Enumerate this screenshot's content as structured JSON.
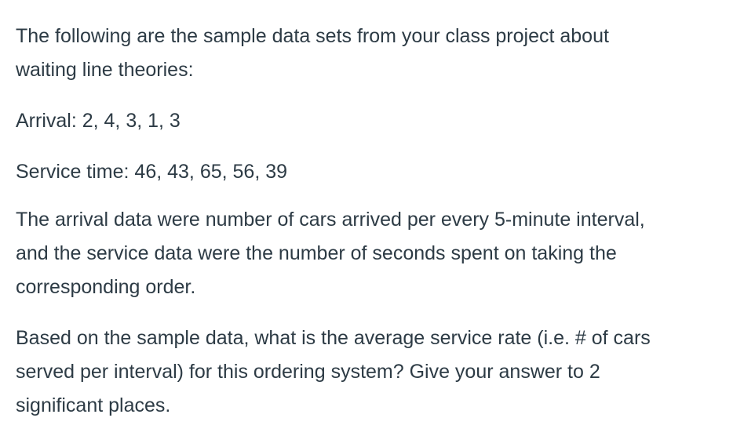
{
  "document": {
    "paragraphs": [
      [
        "The following are the sample data sets from your class project about",
        "waiting line theories:"
      ],
      [
        "Arrival: 2, 4, 3, 1, 3"
      ],
      [
        "Service time: 46, 43, 65, 56, 39"
      ],
      [
        "The arrival data were number of cars arrived per every 5-minute interval,",
        "and the service data were the number of seconds spent on taking the",
        "corresponding order."
      ],
      [
        "Based on the sample data, what is the average service rate (i.e. # of cars",
        "served per interval) for this ordering system?  Give your answer to 2",
        "significant places."
      ]
    ],
    "text_color": "#2d3b45"
  }
}
